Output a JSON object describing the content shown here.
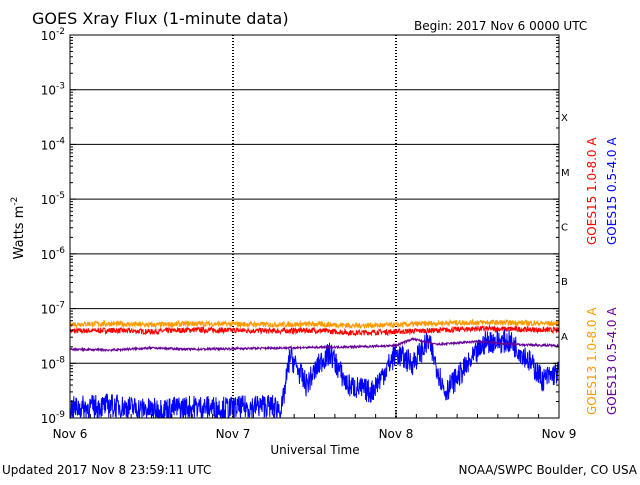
{
  "chart_data": {
    "type": "line",
    "title": "GOES Xray Flux (1-minute data)",
    "begin_label": "Begin:  2017 Nov 6 0000 UTC",
    "xlabel": "Universal Time",
    "ylabel_base": "Watts m",
    "ylabel_sup": "-2",
    "y_scale": "log",
    "ylim": [
      1e-09,
      0.01
    ],
    "y_ticks": [
      {
        "value": 0.01,
        "base": "10",
        "exp": "-2"
      },
      {
        "value": 0.001,
        "base": "10",
        "exp": "-3"
      },
      {
        "value": 0.0001,
        "base": "10",
        "exp": "-4"
      },
      {
        "value": 1e-05,
        "base": "10",
        "exp": "-5"
      },
      {
        "value": 1e-06,
        "base": "10",
        "exp": "-6"
      },
      {
        "value": 1e-07,
        "base": "10",
        "exp": "-7"
      },
      {
        "value": 1e-08,
        "base": "10",
        "exp": "-8"
      },
      {
        "value": 1e-09,
        "base": "10",
        "exp": "-9"
      }
    ],
    "x_ticks": [
      {
        "day": 0,
        "label": "Nov 6"
      },
      {
        "day": 1,
        "label": "Nov 7"
      },
      {
        "day": 2,
        "label": "Nov 8"
      },
      {
        "day": 3,
        "label": "Nov 9"
      }
    ],
    "xlim": [
      0,
      3
    ],
    "flare_classes": [
      {
        "label": "X",
        "value": 0.0001
      },
      {
        "label": "M",
        "value": 1e-05
      },
      {
        "label": "C",
        "value": 1e-06
      },
      {
        "label": "B",
        "value": 1e-07
      },
      {
        "label": "A",
        "value": 1e-08
      }
    ],
    "horizontal_lines": [
      0.001,
      0.0001,
      1e-05,
      1e-06,
      1e-07,
      1e-08
    ],
    "grid": "horizontal lines at each decade, dotted vertical lines at day boundaries",
    "series": [
      {
        "name": "GOES15 1.0-8.0 A",
        "color": "#ff0000",
        "points": [
          [
            0,
            3.9e-08
          ],
          [
            0.25,
            4e-08
          ],
          [
            0.5,
            3.8e-08
          ],
          [
            0.75,
            4.1e-08
          ],
          [
            1.0,
            4e-08
          ],
          [
            1.25,
            3.9e-08
          ],
          [
            1.5,
            4e-08
          ],
          [
            1.75,
            3.6e-08
          ],
          [
            2.0,
            3.8e-08
          ],
          [
            2.25,
            4e-08
          ],
          [
            2.5,
            4.3e-08
          ],
          [
            2.75,
            4.2e-08
          ],
          [
            3.0,
            4e-08
          ]
        ]
      },
      {
        "name": "GOES13 1.0-8.0 A",
        "color": "#ff9900",
        "points": [
          [
            0,
            5.2e-08
          ],
          [
            0.25,
            5.3e-08
          ],
          [
            0.5,
            5e-08
          ],
          [
            0.75,
            5.3e-08
          ],
          [
            1.0,
            5.2e-08
          ],
          [
            1.25,
            5.1e-08
          ],
          [
            1.5,
            5.2e-08
          ],
          [
            1.75,
            4.9e-08
          ],
          [
            2.0,
            5e-08
          ],
          [
            2.25,
            5.4e-08
          ],
          [
            2.5,
            5.6e-08
          ],
          [
            2.75,
            5.5e-08
          ],
          [
            3.0,
            5.3e-08
          ]
        ]
      },
      {
        "name": "GOES15 0.5-4.0 A",
        "color": "#0000ff",
        "points": [
          [
            0,
            1.5e-09
          ],
          [
            0.25,
            1.7e-09
          ],
          [
            0.5,
            1.4e-09
          ],
          [
            0.75,
            1.6e-09
          ],
          [
            1.0,
            1.5e-09
          ],
          [
            1.2,
            1.7e-09
          ],
          [
            1.3,
            1.5e-09
          ],
          [
            1.35,
            1.4e-08
          ],
          [
            1.45,
            4e-09
          ],
          [
            1.55,
            1.2e-08
          ],
          [
            1.6,
            1.5e-08
          ],
          [
            1.7,
            4e-09
          ],
          [
            1.85,
            3e-09
          ],
          [
            2.0,
            1.5e-08
          ],
          [
            2.1,
            1e-08
          ],
          [
            2.2,
            2.5e-08
          ],
          [
            2.3,
            3e-09
          ],
          [
            2.45,
            1e-08
          ],
          [
            2.55,
            2.5e-08
          ],
          [
            2.7,
            2.5e-08
          ],
          [
            2.8,
            1.3e-08
          ],
          [
            2.9,
            5e-09
          ],
          [
            3.0,
            7e-09
          ]
        ]
      },
      {
        "name": "GOES13 0.5-4.0 A",
        "color": "#660099",
        "points": [
          [
            0,
            1.8e-08
          ],
          [
            0.25,
            1.75e-08
          ],
          [
            0.5,
            1.9e-08
          ],
          [
            0.75,
            1.8e-08
          ],
          [
            1.0,
            1.85e-08
          ],
          [
            1.25,
            1.9e-08
          ],
          [
            1.5,
            1.95e-08
          ],
          [
            1.75,
            2e-08
          ],
          [
            2.0,
            2.1e-08
          ],
          [
            2.1,
            2.8e-08
          ],
          [
            2.25,
            2.2e-08
          ],
          [
            2.5,
            2.5e-08
          ],
          [
            2.75,
            2.2e-08
          ],
          [
            3.0,
            2.1e-08
          ]
        ]
      }
    ],
    "legend_placement": "right, rotated vertical text"
  },
  "footer": {
    "updated": "Updated 2017 Nov  8 23:59:11 UTC",
    "credit": "NOAA/SWPC Boulder, CO USA"
  }
}
